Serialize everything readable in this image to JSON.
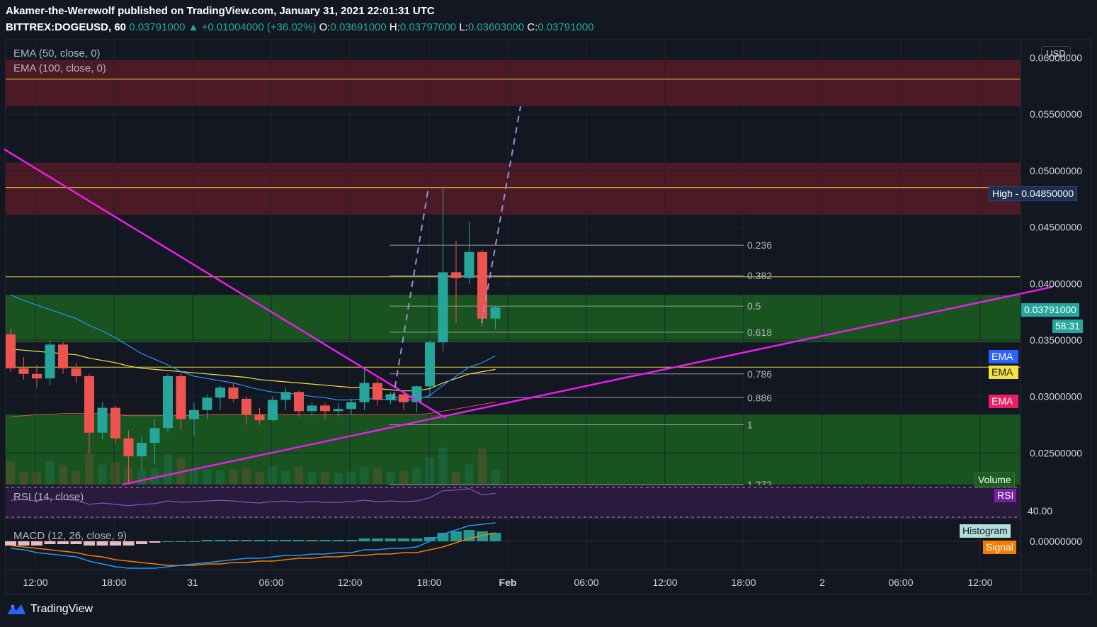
{
  "header": {
    "line1": "Akamer-the-Werewolf published on TradingView.com, January 31, 2021 22:01:31 UTC",
    "symbol": "BITTREX:DOGEUSD, 60",
    "last": "0.03791000",
    "change": "+0.01004000 (+36.02%)",
    "o_label": "O:",
    "o": "0.03691000",
    "h_label": "H:",
    "h": "0.03797000",
    "l_label": "L:",
    "l": "0.03603000",
    "c_label": "C:",
    "c": "0.03791000",
    "up_glyph": "▲"
  },
  "legend": {
    "ema50": "EMA (50, close, 0)",
    "ema100": "EMA (100, close, 0)",
    "rsi": "RSI (14, close)",
    "macd": "MACD (12, 26, close, 9)"
  },
  "currency": "USD",
  "tags": {
    "high_label": "High",
    "high_value": "0.04850000",
    "last_price": "0.03791000",
    "countdown": "58:31",
    "ema_blue": "EMA",
    "ema_yellow": "EMA",
    "ema_red": "EMA",
    "volume": "Volume",
    "rsi": "RSI",
    "rsi_value": "40.00",
    "histogram": "Histogram",
    "signal": "Signal"
  },
  "brand": "TradingView",
  "colors": {
    "background": "#131722",
    "up": "#26a69a",
    "down": "#ef5350",
    "resistance_zone": "#4c1a24",
    "support_zone": "#1b5e20",
    "trendline": "#e91ee8",
    "ema50": "#2196f3",
    "ema100": "#f5e342",
    "fib": "#787b86",
    "projection": "#9c8fd6"
  },
  "chart_data": {
    "type": "candlestick",
    "y_axis": {
      "ticks": [
        "0.06000000",
        "0.05500000",
        "0.05000000",
        "0.04500000",
        "0.04000000",
        "0.03500000",
        "0.03000000",
        "0.02500000"
      ],
      "ylim": [
        0.0222,
        0.0616
      ]
    },
    "x_axis": {
      "ticks": [
        "12:00",
        "18:00",
        "31",
        "06:00",
        "12:00",
        "18:00",
        "Feb",
        "06:00",
        "12:00",
        "18:00",
        "2",
        "06:00",
        "12:00"
      ]
    },
    "candles": [
      [
        0.0355,
        0.036,
        0.0322,
        0.0325
      ],
      [
        0.0325,
        0.0335,
        0.0315,
        0.032
      ],
      [
        0.032,
        0.0328,
        0.0308,
        0.0316
      ],
      [
        0.0316,
        0.035,
        0.031,
        0.0346
      ],
      [
        0.0346,
        0.0348,
        0.032,
        0.0325
      ],
      [
        0.0325,
        0.033,
        0.0312,
        0.0318
      ],
      [
        0.0318,
        0.032,
        0.025,
        0.0268
      ],
      [
        0.0268,
        0.0295,
        0.0262,
        0.029
      ],
      [
        0.029,
        0.0292,
        0.0258,
        0.0263
      ],
      [
        0.0263,
        0.027,
        0.0222,
        0.0247
      ],
      [
        0.0247,
        0.0265,
        0.0235,
        0.0259
      ],
      [
        0.0259,
        0.028,
        0.024,
        0.0272
      ],
      [
        0.0272,
        0.032,
        0.0268,
        0.0318
      ],
      [
        0.0318,
        0.0322,
        0.027,
        0.028
      ],
      [
        0.028,
        0.0295,
        0.0265,
        0.0288
      ],
      [
        0.0288,
        0.0302,
        0.028,
        0.0299
      ],
      [
        0.0299,
        0.031,
        0.0288,
        0.0308
      ],
      [
        0.0308,
        0.0312,
        0.0295,
        0.0298
      ],
      [
        0.0298,
        0.03,
        0.0275,
        0.0284
      ],
      [
        0.0284,
        0.029,
        0.0275,
        0.0279
      ],
      [
        0.0279,
        0.03,
        0.0278,
        0.0297
      ],
      [
        0.0297,
        0.0308,
        0.0288,
        0.0304
      ],
      [
        0.0304,
        0.0305,
        0.0282,
        0.0287
      ],
      [
        0.0287,
        0.0295,
        0.0282,
        0.0292
      ],
      [
        0.0292,
        0.0294,
        0.028,
        0.0287
      ],
      [
        0.0287,
        0.0294,
        0.0282,
        0.0289
      ],
      [
        0.0289,
        0.0298,
        0.0284,
        0.0295
      ],
      [
        0.0295,
        0.0324,
        0.0288,
        0.0312
      ],
      [
        0.0312,
        0.0316,
        0.0292,
        0.0297
      ],
      [
        0.0297,
        0.0304,
        0.0293,
        0.0302
      ],
      [
        0.0302,
        0.0306,
        0.0288,
        0.0295
      ],
      [
        0.0295,
        0.031,
        0.0286,
        0.0309
      ],
      [
        0.0309,
        0.035,
        0.03,
        0.0348
      ],
      [
        0.0348,
        0.0485,
        0.034,
        0.041
      ],
      [
        0.041,
        0.0438,
        0.0365,
        0.0405
      ],
      [
        0.0405,
        0.0455,
        0.04,
        0.0428
      ],
      [
        0.0428,
        0.043,
        0.0362,
        0.0369
      ],
      [
        0.0369,
        0.038,
        0.036,
        0.0379
      ]
    ],
    "ema50": [
      0.039,
      0.0385,
      0.0381,
      0.0377,
      0.0373,
      0.0369,
      0.0363,
      0.0358,
      0.0352,
      0.0345,
      0.0338,
      0.0333,
      0.0328,
      0.0322,
      0.0318,
      0.0316,
      0.0314,
      0.0312,
      0.0309,
      0.0306,
      0.0304,
      0.0303,
      0.0302,
      0.03,
      0.0299,
      0.0297,
      0.0297,
      0.0298,
      0.0298,
      0.0297,
      0.0297,
      0.0297,
      0.0301,
      0.031,
      0.0318,
      0.0326,
      0.033,
      0.0336
    ],
    "ema100": [
      0.0342,
      0.0341,
      0.034,
      0.0339,
      0.0338,
      0.0337,
      0.0334,
      0.0332,
      0.033,
      0.0327,
      0.0325,
      0.0324,
      0.0323,
      0.0322,
      0.0321,
      0.032,
      0.0319,
      0.0318,
      0.0317,
      0.0315,
      0.0314,
      0.0313,
      0.0312,
      0.0311,
      0.031,
      0.0309,
      0.0308,
      0.0308,
      0.0307,
      0.0306,
      0.0305,
      0.0305,
      0.0307,
      0.0312,
      0.0316,
      0.032,
      0.0322,
      0.0324
    ],
    "ema_red": [
      0.0282,
      0.0283,
      0.0284,
      0.0284,
      0.0285,
      0.0285,
      0.0285,
      0.0285,
      0.0284,
      0.0283,
      0.0283,
      0.0283,
      0.0283,
      0.0283,
      0.0283,
      0.0284,
      0.0284,
      0.0284,
      0.0284,
      0.0284,
      0.0284,
      0.0284,
      0.0284,
      0.0284,
      0.0284,
      0.0284,
      0.0284,
      0.0284,
      0.0284,
      0.0284,
      0.0284,
      0.0284,
      0.0285,
      0.0287,
      0.0289,
      0.0291,
      0.0293,
      0.0295
    ],
    "zones": [
      {
        "kind": "resistance",
        "from": 0.0557,
        "to": 0.0598
      },
      {
        "kind": "resistance",
        "from": 0.0461,
        "to": 0.0507
      },
      {
        "kind": "support",
        "from": 0.0348,
        "to": 0.039
      },
      {
        "kind": "support",
        "from": 0.0222,
        "to": 0.0284
      }
    ],
    "horizontal_lines": [
      0.0581,
      0.0485,
      0.0406,
      0.0326
    ],
    "fibonacci": {
      "levels": [
        "0.236",
        "0.382",
        "0.5",
        "0.618",
        "0.786",
        "0.886",
        "1",
        "1.272"
      ],
      "prices": [
        0.0434,
        0.0407,
        0.038,
        0.0357,
        0.032,
        0.0299,
        0.0275,
        0.0222
      ]
    },
    "trendlines": [
      {
        "from": [
          -0.5,
          0.0519
        ],
        "to": [
          33.2,
          0.0281
        ]
      },
      {
        "from": [
          8.5,
          0.0222
        ],
        "to": [
          79.5,
          0.0397
        ]
      }
    ],
    "projection": {
      "from": [
        30,
        0.0298
      ],
      "to": [
        40.6,
        0.0557
      ]
    },
    "rsi": {
      "band": "40.00",
      "values": [
        48,
        49,
        47,
        50,
        49,
        48,
        42,
        44,
        42,
        40,
        42,
        43,
        47,
        45,
        46,
        47,
        48,
        47,
        45,
        44,
        46,
        47,
        45,
        46,
        45,
        45,
        46,
        48,
        46,
        47,
        46,
        47,
        52,
        62,
        63,
        65,
        56,
        58
      ]
    },
    "macd": {
      "histogram": [
        -0.0003,
        -0.0003,
        -0.0003,
        -0.0002,
        -0.0002,
        -0.0002,
        -0.0003,
        -0.0003,
        -0.0003,
        -0.0003,
        -0.0002,
        -0.0001,
        0,
        0,
        0,
        0.0001,
        0.0001,
        0.0001,
        0.0001,
        0.0001,
        0.0001,
        0.0001,
        0.0001,
        0.0001,
        0.0001,
        0.0001,
        0.0001,
        0.0002,
        0.0002,
        0.0002,
        0.0002,
        0.0002,
        0.0003,
        0.0006,
        0.0007,
        0.0008,
        0.0007,
        0.0006
      ],
      "macd_line": [
        -0.0005,
        -0.0006,
        -0.0008,
        -0.0009,
        -0.001,
        -0.0011,
        -0.0014,
        -0.0016,
        -0.0018,
        -0.0019,
        -0.0019,
        -0.0019,
        -0.0018,
        -0.0017,
        -0.0016,
        -0.0015,
        -0.0014,
        -0.0013,
        -0.0012,
        -0.0012,
        -0.0011,
        -0.001,
        -0.001,
        -0.0009,
        -0.0009,
        -0.0008,
        -0.0008,
        -0.0006,
        -0.0006,
        -0.0005,
        -0.0005,
        -0.0004,
        0,
        0.0005,
        0.0008,
        0.0011,
        0.0012,
        0.0013
      ],
      "signal_line": [
        -0.0003,
        -0.0004,
        -0.0005,
        -0.0006,
        -0.0007,
        -0.0008,
        -0.001,
        -0.0011,
        -0.0013,
        -0.0014,
        -0.0015,
        -0.0016,
        -0.0017,
        -0.0017,
        -0.0017,
        -0.0016,
        -0.0016,
        -0.0015,
        -0.0015,
        -0.0014,
        -0.0014,
        -0.0013,
        -0.0012,
        -0.0012,
        -0.0011,
        -0.0011,
        -0.001,
        -0.001,
        -0.0009,
        -0.0009,
        -0.0008,
        -0.0008,
        -0.0006,
        -0.0004,
        -0.0001,
        0.0002,
        0.0004,
        0.0006
      ],
      "zero_label": "0.00000000"
    }
  }
}
